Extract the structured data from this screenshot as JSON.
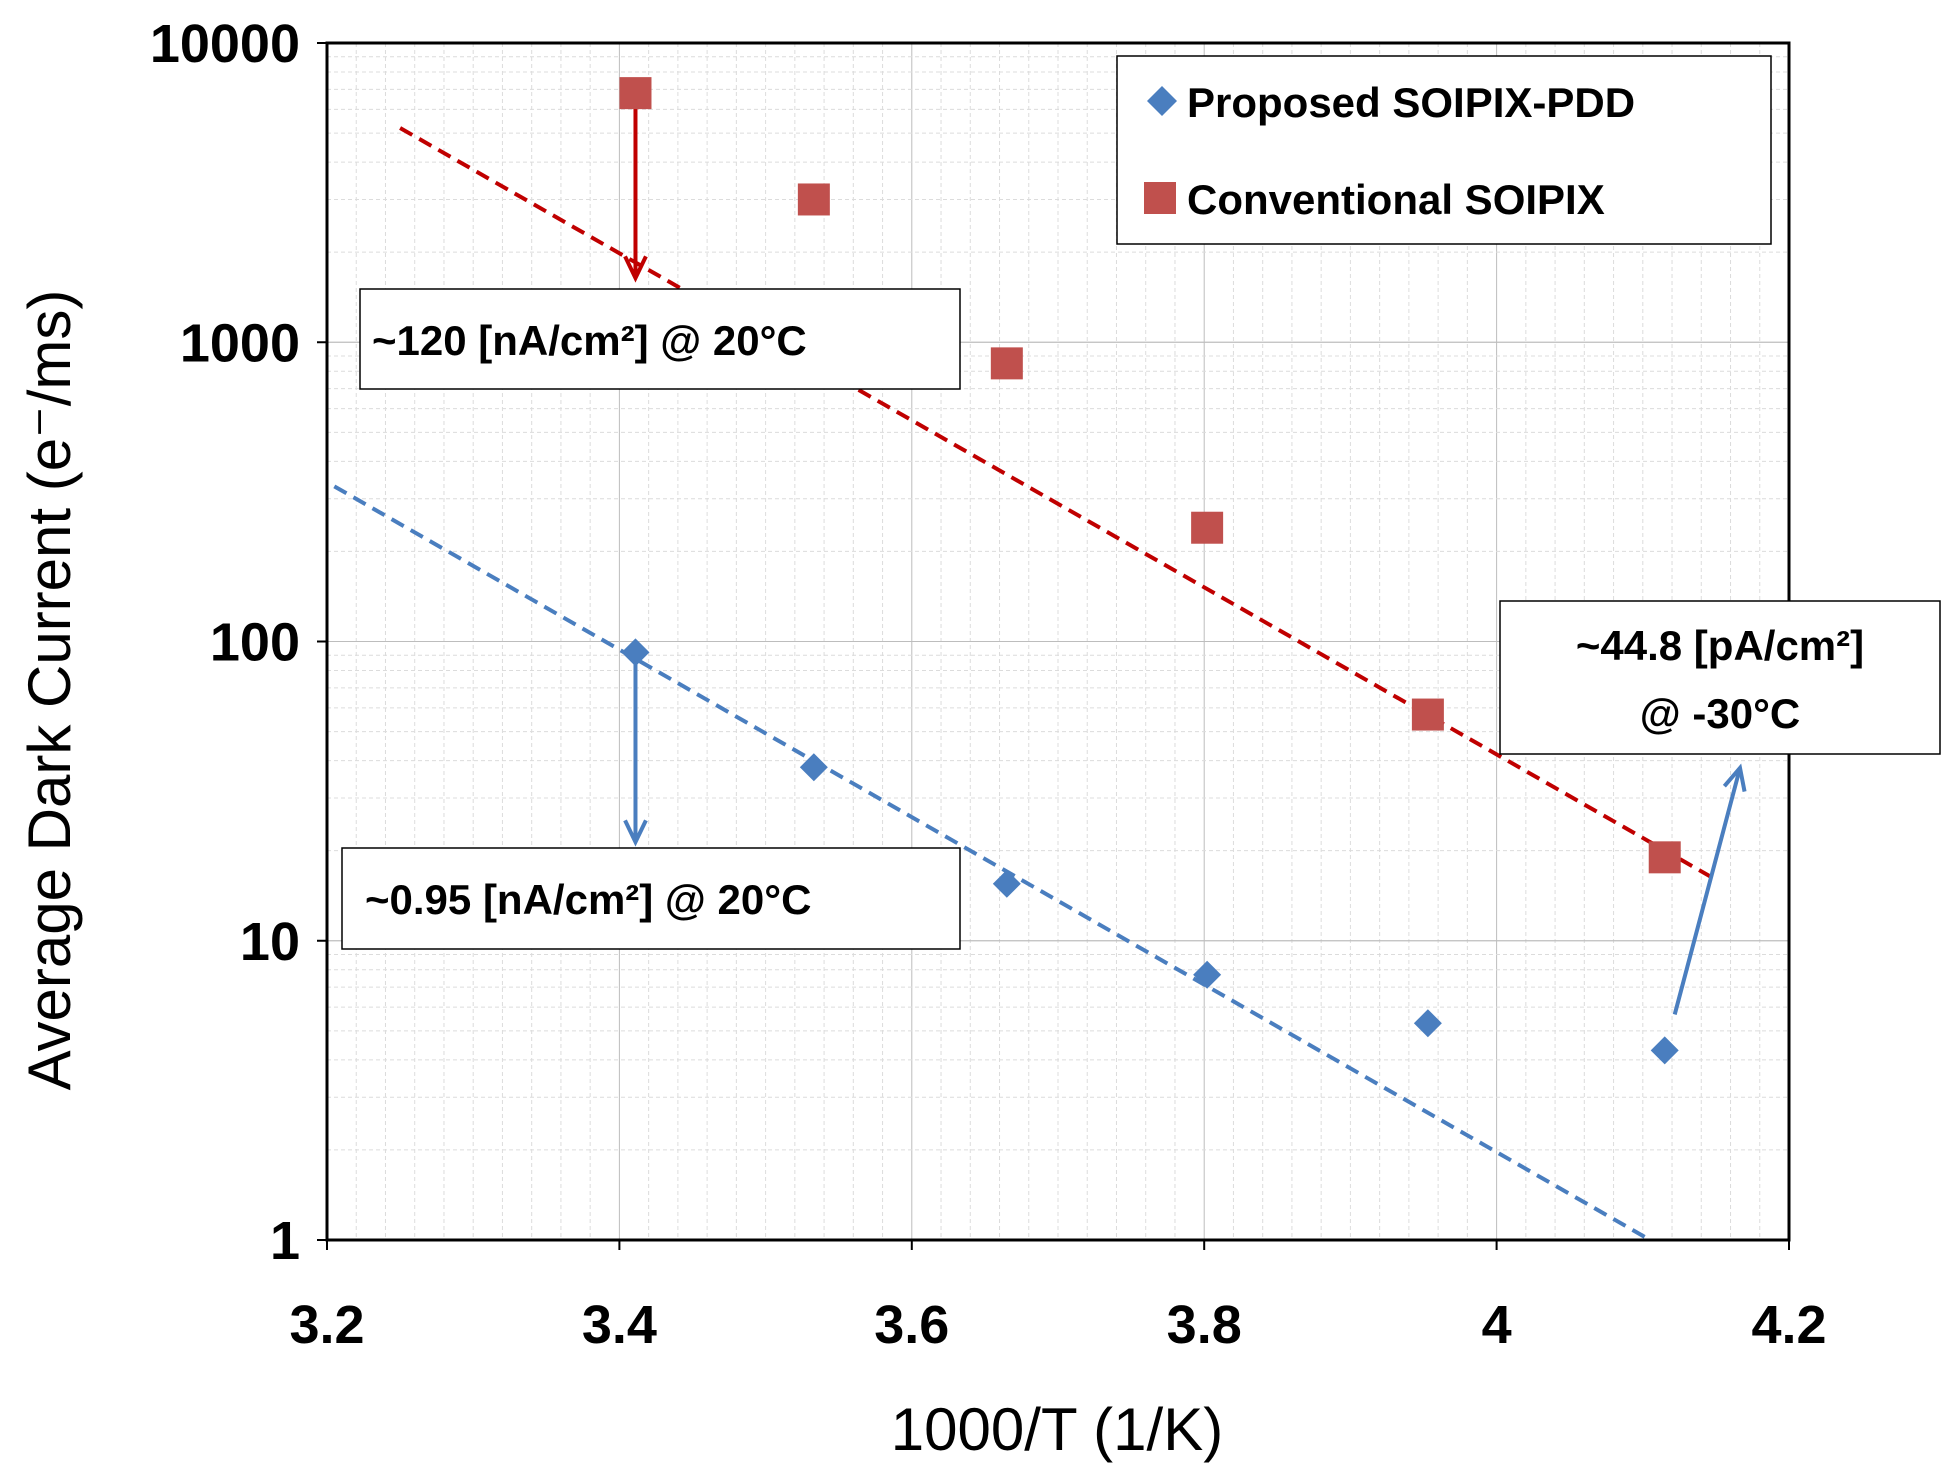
{
  "chart_data": {
    "type": "scatter",
    "title": "",
    "xlabel": "1000/T (1/K)",
    "ylabel": "Average Dark Current (e⁻/ms)",
    "xlim": [
      3.2,
      4.2
    ],
    "ylim": [
      1,
      10000
    ],
    "yscale": "log",
    "grid": true,
    "legend_position": "top-right",
    "x_ticks": [
      3.2,
      3.4,
      3.6,
      3.8,
      4.0,
      4.2
    ],
    "x_tick_labels": [
      "3.2",
      "3.4",
      "3.6",
      "3.8",
      "4",
      "4.2"
    ],
    "y_ticks": [
      1,
      10,
      100,
      1000,
      10000
    ],
    "y_tick_labels": [
      "1",
      "10",
      "100",
      "1000",
      "10000"
    ],
    "series": [
      {
        "name": "Proposed SOIPIX-PDD",
        "marker": "diamond",
        "color": "#4a7ebf",
        "x": [
          3.411,
          3.533,
          3.665,
          3.802,
          3.953,
          4.115
        ],
        "y": [
          92,
          38,
          15.5,
          7.7,
          5.3,
          4.3
        ]
      },
      {
        "name": "Conventional SOIPIX",
        "marker": "square",
        "color": "#c0504d",
        "x": [
          3.411,
          3.533,
          3.665,
          3.802,
          3.953,
          4.115
        ],
        "y": [
          6800,
          3000,
          850,
          240,
          57,
          19
        ]
      }
    ],
    "trendlines": [
      {
        "series": "Conventional SOIPIX",
        "color": "#c00000",
        "x": [
          3.25,
          4.15
        ],
        "y": [
          5200,
          16
        ]
      },
      {
        "series": "Proposed SOIPIX-PDD",
        "color": "#4a7ebf",
        "x": [
          3.205,
          4.105
        ],
        "y": [
          330,
          1
        ]
      }
    ],
    "annotations": [
      {
        "text": "~120 [nA/cm²] @ 20°C"
      },
      {
        "text": "~0.95 [nA/cm²] @ 20°C"
      },
      {
        "text": "~44.8 [pA/cm²]",
        "text2": "@ -30°C"
      }
    ]
  }
}
